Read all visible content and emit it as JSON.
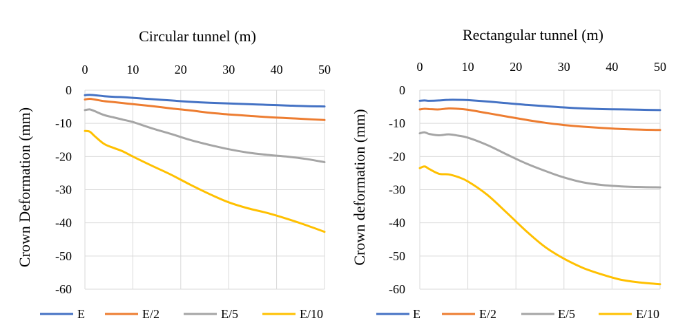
{
  "chart_data": [
    {
      "type": "line",
      "title": "Circular tunnel (m)",
      "xlabel": "Circular tunnel (m)",
      "ylabel": "Crown Deformation (mm)",
      "xlim": [
        0,
        50
      ],
      "ylim": [
        -60,
        0
      ],
      "x_ticks": [
        "0",
        "10",
        "20",
        "30",
        "40",
        "50"
      ],
      "y_ticks": [
        "0",
        "-10",
        "-20",
        "-30",
        "-40",
        "-50",
        "-60"
      ],
      "grid": true,
      "legend_position": "bottom",
      "x": [
        0,
        1,
        2,
        4,
        6,
        8,
        10,
        14,
        18,
        22,
        26,
        30,
        34,
        38,
        42,
        46,
        50
      ],
      "series": [
        {
          "name": "E",
          "color": "#4472C4",
          "values": [
            -1.5,
            -1.4,
            -1.5,
            -1.8,
            -2.0,
            -2.1,
            -2.3,
            -2.7,
            -3.1,
            -3.5,
            -3.8,
            -4.0,
            -4.2,
            -4.4,
            -4.6,
            -4.8,
            -4.9
          ]
        },
        {
          "name": "E/2",
          "color": "#ED7D31",
          "values": [
            -2.8,
            -2.6,
            -2.8,
            -3.3,
            -3.6,
            -3.9,
            -4.2,
            -4.8,
            -5.5,
            -6.1,
            -6.8,
            -7.3,
            -7.7,
            -8.1,
            -8.4,
            -8.7,
            -9.0
          ]
        },
        {
          "name": "E/5",
          "color": "#A5A5A5",
          "values": [
            -6.0,
            -5.8,
            -6.3,
            -7.5,
            -8.2,
            -8.9,
            -9.6,
            -11.5,
            -13.2,
            -15.0,
            -16.5,
            -17.8,
            -18.8,
            -19.5,
            -20.0,
            -20.7,
            -21.7
          ]
        },
        {
          "name": "E/10",
          "color": "#FFC000",
          "values": [
            -12.3,
            -12.5,
            -13.8,
            -16.2,
            -17.4,
            -18.5,
            -20.0,
            -22.8,
            -25.5,
            -28.5,
            -31.3,
            -33.8,
            -35.6,
            -37.0,
            -38.7,
            -40.6,
            -42.7
          ]
        }
      ]
    },
    {
      "type": "line",
      "title": "Rectangular tunnel (m)",
      "xlabel": "Rectangular tunnel (m)",
      "ylabel": "Crown deformation (mm)",
      "xlim": [
        0,
        50
      ],
      "ylim": [
        -60,
        0
      ],
      "x_ticks": [
        "0",
        "10",
        "20",
        "30",
        "40",
        "50"
      ],
      "y_ticks": [
        "0",
        "-10",
        "-20",
        "-30",
        "-40",
        "-50",
        "-60"
      ],
      "grid": true,
      "legend_position": "bottom",
      "x": [
        0,
        1,
        2,
        4,
        6,
        8,
        10,
        14,
        18,
        22,
        26,
        30,
        34,
        38,
        42,
        46,
        50
      ],
      "series": [
        {
          "name": "E",
          "color": "#4472C4",
          "values": [
            -3.2,
            -3.1,
            -3.2,
            -3.1,
            -2.9,
            -2.9,
            -3.0,
            -3.4,
            -3.9,
            -4.4,
            -4.8,
            -5.2,
            -5.5,
            -5.7,
            -5.8,
            -5.9,
            -6.0
          ]
        },
        {
          "name": "E/2",
          "color": "#ED7D31",
          "values": [
            -5.8,
            -5.6,
            -5.7,
            -5.8,
            -5.5,
            -5.6,
            -5.9,
            -6.9,
            -7.9,
            -8.9,
            -9.8,
            -10.5,
            -11.0,
            -11.4,
            -11.7,
            -11.9,
            -12.0
          ]
        },
        {
          "name": "E/5",
          "color": "#A5A5A5",
          "values": [
            -13.0,
            -12.7,
            -13.2,
            -13.6,
            -13.3,
            -13.7,
            -14.3,
            -16.5,
            -19.3,
            -22.0,
            -24.3,
            -26.3,
            -27.8,
            -28.6,
            -29.0,
            -29.2,
            -29.3
          ]
        },
        {
          "name": "E/10",
          "color": "#FFC000",
          "values": [
            -23.5,
            -23.0,
            -23.8,
            -25.2,
            -25.4,
            -26.2,
            -27.5,
            -31.5,
            -36.8,
            -42.3,
            -47.2,
            -50.8,
            -53.6,
            -55.6,
            -57.2,
            -58.0,
            -58.5
          ]
        }
      ]
    }
  ]
}
